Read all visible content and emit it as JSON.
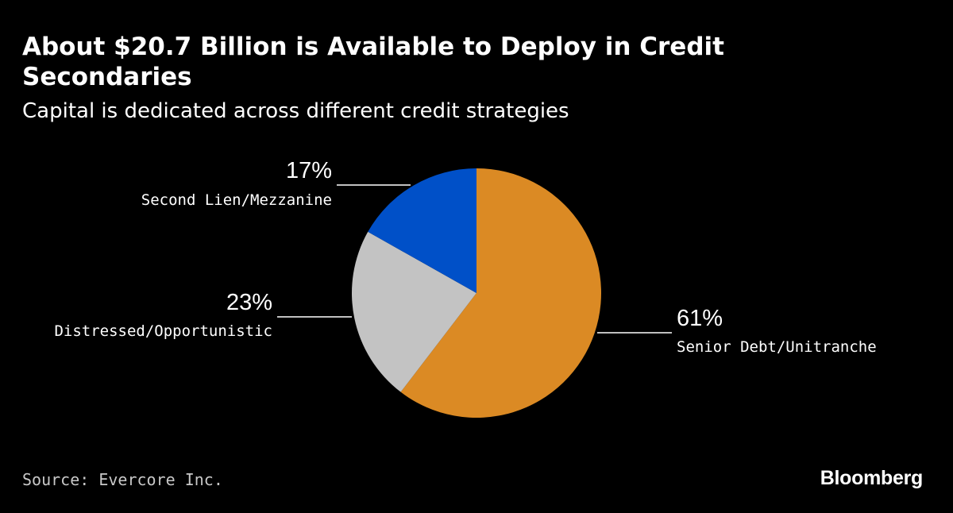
{
  "title": "About $20.7 Billion is Available to Deploy in Credit Secondaries",
  "subtitle": "Capital is dedicated across different credit strategies",
  "source": "Source: Evercore Inc.",
  "brand": "Bloomberg",
  "chart_data": {
    "type": "pie",
    "title": "About $20.7 Billion is Available to Deploy in Credit Secondaries",
    "subtitle": "Capital is dedicated across different credit strategies",
    "start_angle_deg": 0,
    "direction": "clockwise",
    "slices": [
      {
        "label": "Senior Debt/Unitranche",
        "value": 61,
        "value_label": "61%",
        "color": "#db8a24"
      },
      {
        "label": "Distressed/Opportunistic",
        "value": 23,
        "value_label": "23%",
        "color": "#c3c3c3"
      },
      {
        "label": "Second Lien/Mezzanine",
        "value": 17,
        "value_label": "17%",
        "color": "#0050c8"
      }
    ]
  }
}
